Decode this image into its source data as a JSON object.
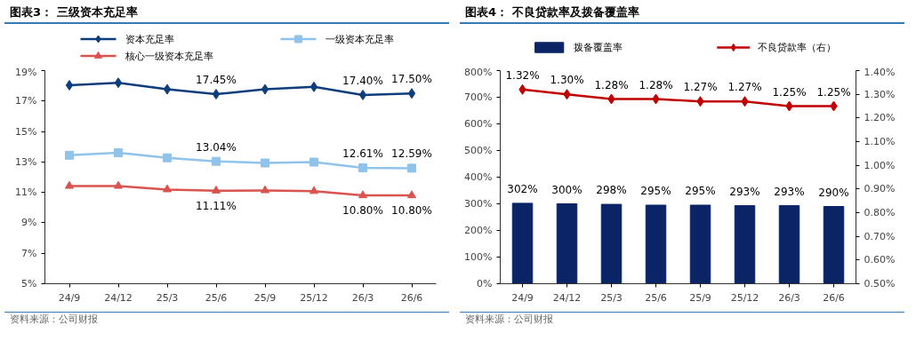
{
  "chart_data": [
    {
      "type": "line",
      "title": "图表3：  三级资本充足率",
      "categories": [
        "24/9",
        "24/12",
        "25/3",
        "25/6",
        "25/9",
        "25/12",
        "26/3",
        "26/6"
      ],
      "series": [
        {
          "name": "资本充足率",
          "color": "#0e3d7c",
          "marker": "diamond",
          "values": [
            18.04,
            18.2,
            17.77,
            17.45,
            17.77,
            17.93,
            17.4,
            17.5
          ],
          "value_labels": [
            null,
            null,
            null,
            "17.45%",
            null,
            null,
            "17.40%",
            "17.50%"
          ]
        },
        {
          "name": "一级资本充足率",
          "color": "#8fc3ea",
          "marker": "square",
          "values": [
            13.44,
            13.6,
            13.27,
            13.04,
            12.93,
            12.99,
            12.61,
            12.59
          ],
          "value_labels": [
            null,
            null,
            null,
            "13.04%",
            null,
            null,
            "12.61%",
            "12.59%"
          ]
        },
        {
          "name": "核心一级资本充足率",
          "color": "#d9534f",
          "marker": "triangle",
          "values": [
            11.42,
            11.42,
            11.19,
            11.11,
            11.13,
            11.08,
            10.8,
            10.8
          ],
          "value_labels": [
            null,
            null,
            null,
            "11.11%",
            null,
            null,
            "10.80%",
            "10.80%"
          ]
        }
      ],
      "ylim": [
        5,
        19
      ],
      "yticks": [
        {
          "value": 5,
          "label": "5%"
        },
        {
          "value": 7,
          "label": "7%"
        },
        {
          "value": 9,
          "label": "9%"
        },
        {
          "value": 11,
          "label": "11%"
        },
        {
          "value": 13,
          "label": "13%"
        },
        {
          "value": 15,
          "label": "15%"
        },
        {
          "value": 17,
          "label": "17%"
        },
        {
          "value": 19,
          "label": "19%"
        }
      ],
      "legend": "top",
      "annotations": [
        "资料来源：公司财报"
      ]
    },
    {
      "type": "bar",
      "title": "图表4：  不良贷款率及拨备覆盖率",
      "categories": [
        "24/9",
        "24/12",
        "25/3",
        "25/6",
        "25/9",
        "25/12",
        "26/3",
        "26/6"
      ],
      "series": [
        {
          "name": "拨备覆盖率",
          "type": "bar",
          "color": "#0a2466",
          "values": [
            302,
            300,
            298,
            295,
            295,
            293,
            293,
            290
          ],
          "value_labels": [
            "302%",
            "300%",
            "298%",
            "295%",
            "295%",
            "293%",
            "293%",
            "290%"
          ]
        },
        {
          "name": "不良贷款率（右）",
          "type": "line",
          "axis": "y2",
          "color": "#c00000",
          "marker": "diamond",
          "values": [
            1.32,
            1.3,
            1.28,
            1.28,
            1.27,
            1.27,
            1.25,
            1.25
          ],
          "value_labels": [
            "1.32%",
            "1.30%",
            "1.28%",
            "1.28%",
            "1.27%",
            "1.27%",
            "1.25%",
            "1.25%"
          ]
        }
      ],
      "ylim": [
        0,
        800
      ],
      "yticks": [
        {
          "value": 0,
          "label": "0%"
        },
        {
          "value": 100,
          "label": "100%"
        },
        {
          "value": 200,
          "label": "200%"
        },
        {
          "value": 300,
          "label": "300%"
        },
        {
          "value": 400,
          "label": "400%"
        },
        {
          "value": 500,
          "label": "500%"
        },
        {
          "value": 600,
          "label": "600%"
        },
        {
          "value": 700,
          "label": "700%"
        },
        {
          "value": 800,
          "label": "800%"
        }
      ],
      "y2lim": [
        0.5,
        1.4
      ],
      "y2ticks": [
        {
          "value": 0.5,
          "label": "0.50%"
        },
        {
          "value": 0.6,
          "label": "0.60%"
        },
        {
          "value": 0.7,
          "label": "0.70%"
        },
        {
          "value": 0.8,
          "label": "0.80%"
        },
        {
          "value": 0.9,
          "label": "0.90%"
        },
        {
          "value": 1.0,
          "label": "1.00%"
        },
        {
          "value": 1.1,
          "label": "1.10%"
        },
        {
          "value": 1.2,
          "label": "1.20%"
        },
        {
          "value": 1.3,
          "label": "1.30%"
        },
        {
          "value": 1.4,
          "label": "1.40%"
        }
      ],
      "legend": "top",
      "annotations": [
        "资料来源：公司财报"
      ]
    }
  ]
}
